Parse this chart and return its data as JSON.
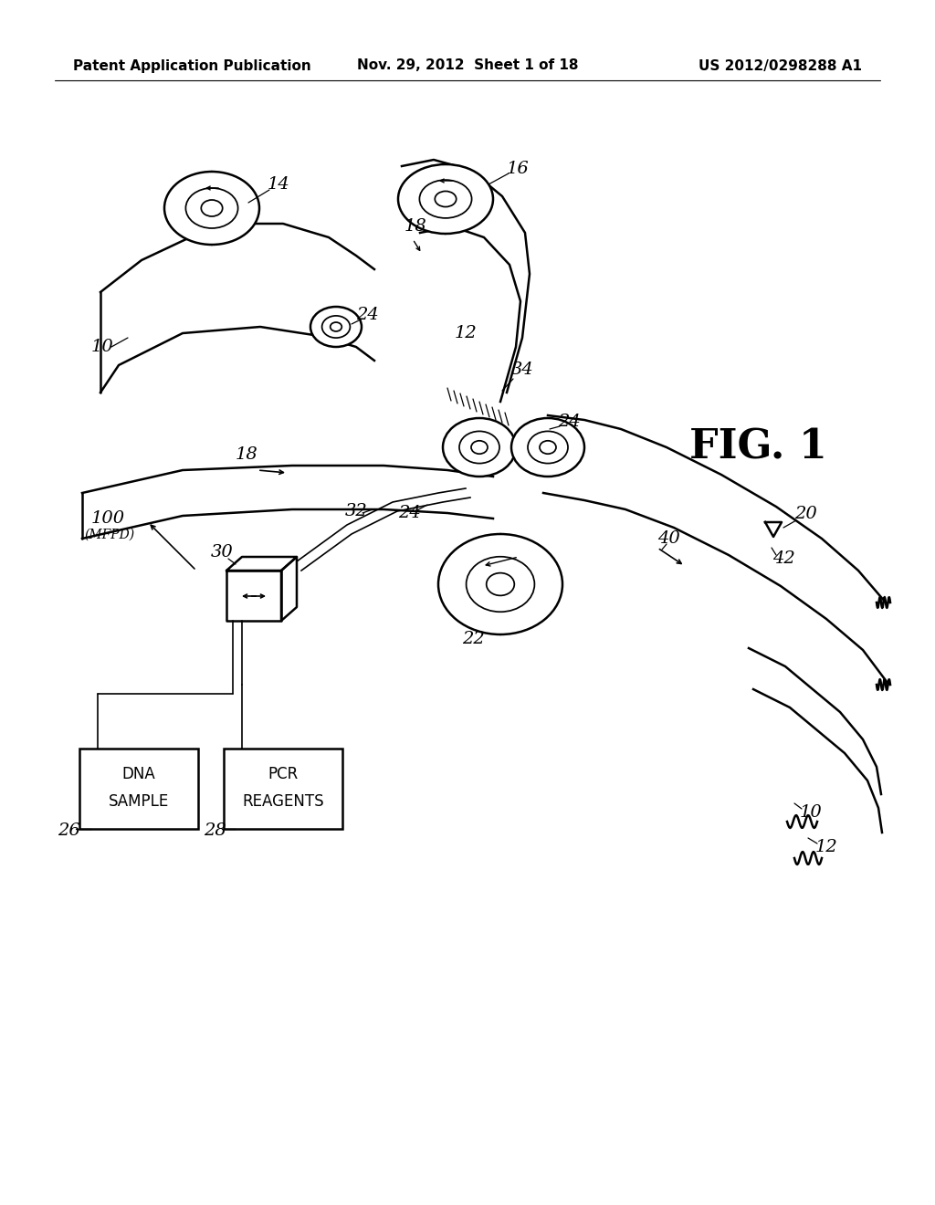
{
  "background_color": "#ffffff",
  "header_left": "Patent Application Publication",
  "header_center": "Nov. 29, 2012  Sheet 1 of 18",
  "header_right": "US 2012/0298288 A1",
  "figure_label": "FIG. 1",
  "header_fontsize": 11,
  "label_fontsize": 14
}
